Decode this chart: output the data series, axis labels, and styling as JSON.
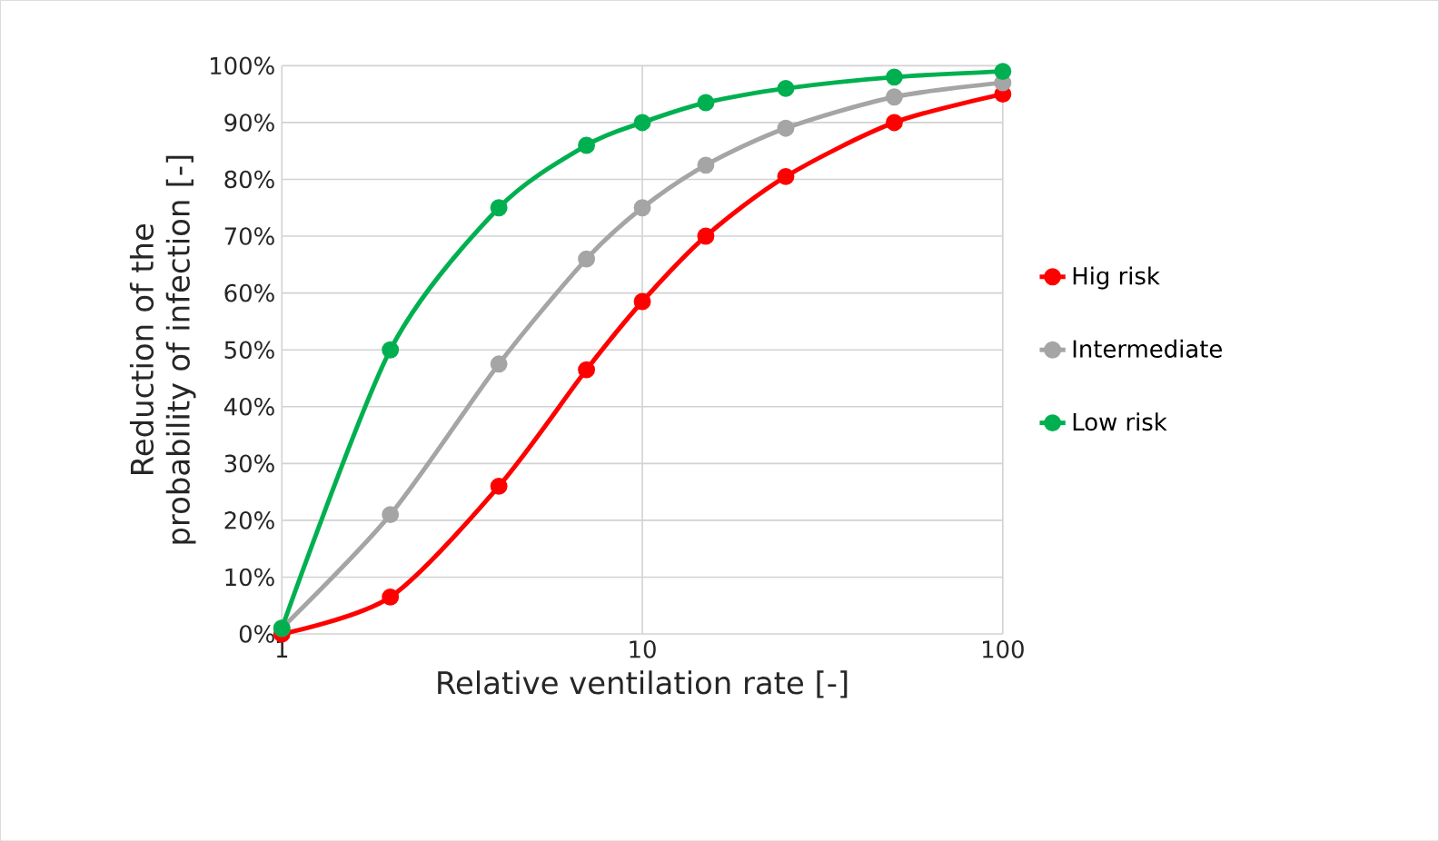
{
  "chart_data": {
    "type": "line",
    "xlabel": "Relative ventilation rate [-]",
    "ylabel": "Reduction of the probability of infection [-]",
    "x": [
      1,
      2,
      4,
      7,
      10,
      15,
      25,
      50,
      100
    ],
    "series": [
      {
        "name": "Hig risk",
        "color": "#ff0000",
        "values": [
          0,
          6.5,
          26,
          46.5,
          58.5,
          70,
          80.5,
          90,
          95
        ]
      },
      {
        "name": "Intermediate",
        "color": "#a5a5a5",
        "values": [
          1,
          21,
          47.5,
          66,
          75,
          82.5,
          89,
          94.5,
          97
        ]
      },
      {
        "name": "Low risk",
        "color": "#00b050",
        "values": [
          1,
          50,
          75,
          86,
          90,
          93.5,
          96,
          98,
          99
        ]
      }
    ],
    "log": "x",
    "xlim": [
      1,
      100
    ],
    "xticks": [
      1,
      10,
      100
    ],
    "ylim": [
      0,
      100
    ],
    "yticks": [
      {
        "value": 0,
        "label": "0%"
      },
      {
        "value": 10,
        "label": "10%"
      },
      {
        "value": 20,
        "label": "20%"
      },
      {
        "value": 30,
        "label": "30%"
      },
      {
        "value": 40,
        "label": "40%"
      },
      {
        "value": 50,
        "label": "50%"
      },
      {
        "value": 60,
        "label": "60%"
      },
      {
        "value": 70,
        "label": "70%"
      },
      {
        "value": 80,
        "label": "80%"
      },
      {
        "value": 90,
        "label": "90%"
      },
      {
        "value": 100,
        "label": "100%"
      }
    ],
    "grid": true,
    "legend": "right",
    "marker": "circle",
    "line_style": "solid"
  }
}
